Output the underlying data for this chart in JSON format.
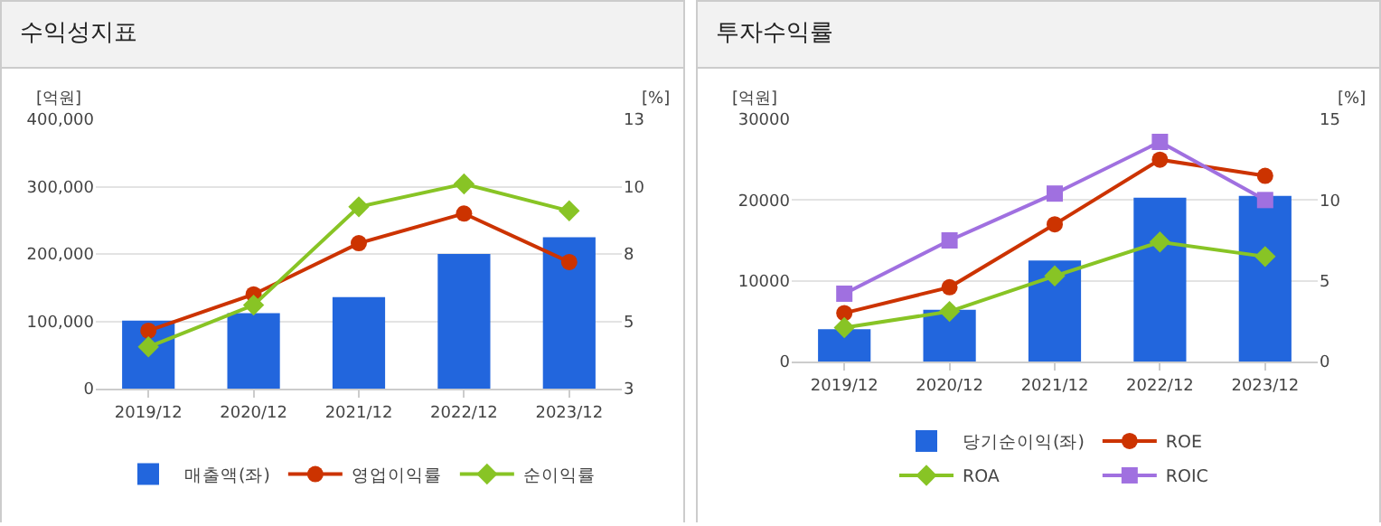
{
  "chart_data": [
    {
      "type": "bar",
      "title": "수익성지표",
      "ylabel": "[억원]",
      "y2label": "[%]",
      "categories": [
        "2019/12",
        "2020/12",
        "2021/12",
        "2022/12",
        "2023/12"
      ],
      "series": [
        {
          "name": "매출액(좌)",
          "color": "#2266dd",
          "values": [
            101000,
            112000,
            136000,
            200000,
            225000
          ]
        },
        {
          "name": "영업이익률",
          "type": "line",
          "axis": "y2",
          "marker": "circle",
          "color": "#cc3300",
          "values": [
            5.15,
            6.5,
            8.4,
            9.5,
            7.7
          ]
        },
        {
          "name": "순이익률",
          "type": "line",
          "axis": "y2",
          "marker": "diamond",
          "color": "#88c425",
          "values": [
            4.55,
            6.1,
            9.75,
            10.6,
            9.6
          ]
        }
      ],
      "ylim": [
        0,
        400000
      ],
      "yticks": [
        {
          "value": 0,
          "label": "0"
        },
        {
          "value": 100000,
          "label": "100,000"
        },
        {
          "value": 200000,
          "label": "200,000"
        },
        {
          "value": 300000,
          "label": "300,000"
        },
        {
          "value": 400000,
          "label": "400,000"
        }
      ],
      "y2lim": [
        3,
        13
      ],
      "y2ticks": [
        3,
        {
          "value": 5.5,
          "label": "5"
        },
        8,
        {
          "value": 10.5,
          "label": "10"
        },
        13
      ],
      "grid": "y",
      "legend": "bottom"
    },
    {
      "type": "bar",
      "title": "투자수익률",
      "ylabel": "[억원]",
      "y2label": "[%]",
      "categories": [
        "2019/12",
        "2020/12",
        "2021/12",
        "2022/12",
        "2023/12"
      ],
      "series": [
        {
          "name": "당기순이익(좌)",
          "color": "#2266dd",
          "values": [
            4000,
            6400,
            12500,
            20300,
            20500
          ]
        },
        {
          "name": "ROE",
          "type": "line",
          "axis": "y2",
          "marker": "circle",
          "color": "#cc3300",
          "values": [
            3.0,
            4.6,
            8.5,
            12.5,
            11.5
          ]
        },
        {
          "name": "ROA",
          "type": "line",
          "axis": "y2",
          "marker": "diamond",
          "color": "#88c425",
          "values": [
            2.1,
            3.1,
            5.3,
            7.4,
            6.5
          ]
        },
        {
          "name": "ROIC",
          "type": "line",
          "axis": "y2",
          "marker": "square",
          "color": "#a070e0",
          "values": [
            4.2,
            7.5,
            10.4,
            13.6,
            10.0
          ]
        }
      ],
      "ylim": [
        0,
        30000
      ],
      "yticks": [
        0,
        10000,
        20000,
        30000
      ],
      "y2lim": [
        0,
        15
      ],
      "y2ticks": [
        0,
        5,
        10,
        15
      ],
      "grid": "y",
      "legend": "bottom"
    }
  ]
}
